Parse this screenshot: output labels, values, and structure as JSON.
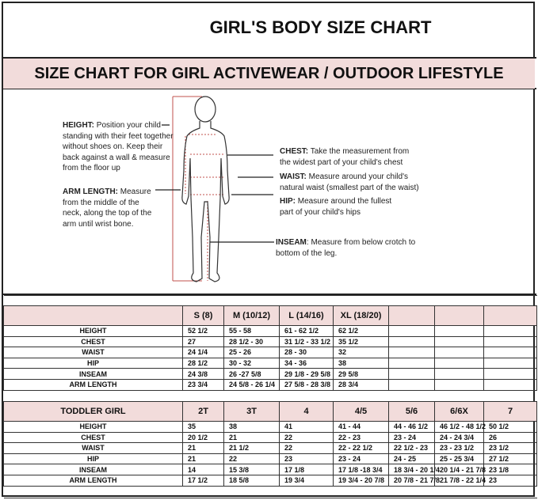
{
  "title": "GIRL'S BODY SIZE CHART",
  "subtitle": "SIZE CHART FOR GIRL ACTIVEWEAR / OUTDOOR LIFESTYLE",
  "colors": {
    "header_fill": "#f2dcdb",
    "measure_line": "#c0504d"
  },
  "notes": {
    "height": {
      "label": "HEIGHT:",
      "text": "Position your child standing with their feet together without shoes on. Keep their back against a wall & measure from the floor up"
    },
    "arm": {
      "label": "ARM LENGTH:",
      "text": "Measure from the middle of the neck, along the top of the arm until wrist bone."
    },
    "chest": {
      "label": "CHEST:",
      "text": "Take the measurement from the widest part of your child's chest"
    },
    "waist": {
      "label": "WAIST:",
      "text": "Measure around your child's natural waist (smallest part of the waist)"
    },
    "hip": {
      "label": "HIP:",
      "text": "Measure around the fullest part of your child's hips"
    },
    "inseam": {
      "label": "INSEAM",
      "text": ": Measure from below crotch to bottom of the leg."
    }
  },
  "girl_table": {
    "corner": "",
    "columns": [
      "S (8)",
      "M (10/12)",
      "L (14/16)",
      "XL (18/20)",
      "",
      "",
      ""
    ],
    "rows": [
      {
        "label": "HEIGHT",
        "values": [
          "52 1/2",
          "55 - 58",
          "61 -  62 1/2",
          "62 1/2",
          "",
          "",
          ""
        ]
      },
      {
        "label": "CHEST",
        "values": [
          "27",
          "28 1/2 - 30",
          "31 1/2 - 33 1/2",
          "35 1/2",
          "",
          "",
          ""
        ]
      },
      {
        "label": "WAIST",
        "values": [
          "24 1/4",
          "25  - 26",
          "28 - 30",
          "32",
          "",
          "",
          ""
        ]
      },
      {
        "label": "HIP",
        "values": [
          "28 1/2",
          "30 - 32",
          "34 - 36",
          "38",
          "",
          "",
          ""
        ]
      },
      {
        "label": "INSEAM",
        "values": [
          "24 3/8",
          "26 -27 5/8",
          "29 1/8 - 29 5/8",
          "29 5/8",
          "",
          "",
          ""
        ]
      },
      {
        "label": "ARM LENGTH",
        "values": [
          "23 3/4",
          "24 5/8 - 26 1/4",
          "27 5/8  - 28 3/8",
          "28 3/4",
          "",
          "",
          ""
        ]
      }
    ]
  },
  "toddler_table": {
    "corner": "TODDLER GIRL",
    "columns": [
      "2T",
      "3T",
      "4",
      "4/5",
      "5/6",
      "6/6X",
      "7"
    ],
    "rows": [
      {
        "label": "HEIGHT",
        "values": [
          "35",
          "38",
          "41",
          "41 - 44",
          "44  -  46 1/2",
          "46 1/2 - 48 1/2",
          "50 1/2"
        ]
      },
      {
        "label": "CHEST",
        "values": [
          "20 1/2",
          "21",
          "22",
          "22 - 23",
          "23 - 24",
          "24 -  24 3/4",
          "26"
        ]
      },
      {
        "label": "WAIST",
        "values": [
          "21",
          "21 1/2",
          "22",
          "22 - 22 1/2",
          "22 1/2 - 23",
          "23 - 23 1/2",
          "23 1/2"
        ]
      },
      {
        "label": "HIP",
        "values": [
          "21",
          "22",
          "23",
          "23 - 24",
          "24 - 25",
          "25 - 25 3/4",
          "27 1/2"
        ]
      },
      {
        "label": "INSEAM",
        "values": [
          "14",
          "15 3/8",
          "17 1/8",
          "17 1/8 -18 3/4",
          "18 3/4 - 20 1/4",
          "20 1/4 - 21 7/8",
          "23 1/8"
        ]
      },
      {
        "label": "ARM LENGTH",
        "values": [
          "17 1/2",
          "18 5/8",
          "19 3/4",
          "19 3/4 - 20  7/8",
          "20 7/8 - 21 7/8",
          "21 7/8  - 22 1/4",
          "23"
        ]
      }
    ]
  }
}
